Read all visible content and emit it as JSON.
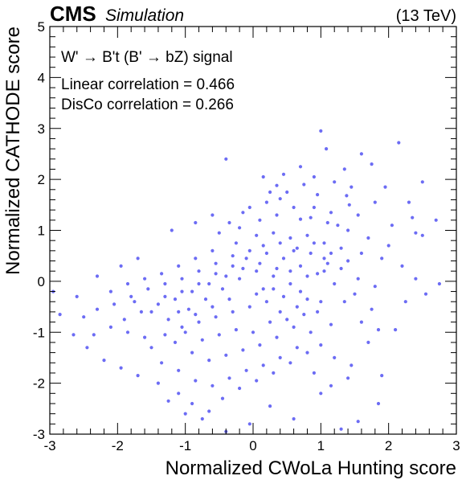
{
  "header": {
    "experiment": "CMS",
    "status": "Simulation",
    "energy": "(13 TeV)"
  },
  "annotations": {
    "process": "W' → B't (B' → bZ) signal",
    "linear_corr": "Linear correlation = 0.466",
    "disco_corr": "DisCo correlation = 0.266"
  },
  "colors": {
    "points": "#3b3bf0",
    "axis": "#000000"
  },
  "chart_data": {
    "type": "scatter",
    "title": "",
    "xlabel": "Normalized CWoLa Hunting score",
    "ylabel": "Normalized CATHODE score",
    "xlim": [
      -3,
      3
    ],
    "ylim": [
      -3,
      5
    ],
    "xticks": [
      -3,
      -2,
      -1,
      0,
      1,
      2,
      3
    ],
    "yticks": [
      -3,
      -2,
      -1,
      0,
      1,
      2,
      3,
      4,
      5
    ],
    "grid": false,
    "legend": "none",
    "points": [
      [
        1.0,
        2.95
      ],
      [
        2.15,
        2.72
      ],
      [
        1.08,
        2.6
      ],
      [
        1.6,
        2.5
      ],
      [
        1.75,
        2.3
      ],
      [
        2.5,
        1.95
      ],
      [
        0.35,
        1.88
      ],
      [
        1.45,
        1.85
      ],
      [
        1.42,
        1.5
      ],
      [
        1.38,
        1.68
      ],
      [
        0.15,
        2.05
      ],
      [
        -0.4,
        2.4
      ],
      [
        2.35,
        1.25
      ],
      [
        2.4,
        0.95
      ],
      [
        2.5,
        0.9
      ],
      [
        2.7,
        1.2
      ],
      [
        2.05,
        1.1
      ],
      [
        1.15,
        1.35
      ],
      [
        1.25,
        1.1
      ],
      [
        0.7,
        1.22
      ],
      [
        0.9,
        1.45
      ],
      [
        0.4,
        1.62
      ],
      [
        -0.6,
        1.3
      ],
      [
        -0.85,
        1.15
      ],
      [
        -1.2,
        1.0
      ],
      [
        -0.5,
        0.95
      ],
      [
        -0.2,
        1.05
      ],
      [
        0.05,
        0.9
      ],
      [
        0.3,
        0.95
      ],
      [
        0.55,
        0.85
      ],
      [
        0.8,
        0.9
      ],
      [
        1.05,
        0.75
      ],
      [
        1.3,
        0.65
      ],
      [
        1.6,
        0.55
      ],
      [
        1.9,
        0.45
      ],
      [
        2.2,
        0.3
      ],
      [
        2.4,
        0.05
      ],
      [
        2.55,
        -0.25
      ],
      [
        2.75,
        -0.05
      ],
      [
        2.25,
        -0.4
      ],
      [
        2.1,
        -0.95
      ],
      [
        1.75,
        -0.55
      ],
      [
        1.5,
        -0.25
      ],
      [
        1.2,
        -0.05
      ],
      [
        0.95,
        0.15
      ],
      [
        0.7,
        0.3
      ],
      [
        0.45,
        0.45
      ],
      [
        0.2,
        0.55
      ],
      [
        -0.05,
        0.6
      ],
      [
        -0.3,
        0.5
      ],
      [
        -0.55,
        0.35
      ],
      [
        -0.8,
        0.2
      ],
      [
        -1.05,
        0.05
      ],
      [
        -1.3,
        -0.05
      ],
      [
        -1.55,
        -0.15
      ],
      [
        -1.8,
        -0.3
      ],
      [
        -2.05,
        -0.45
      ],
      [
        -2.3,
        -0.55
      ],
      [
        -2.5,
        -0.7
      ],
      [
        -2.65,
        -1.05
      ],
      [
        -2.45,
        -1.3
      ],
      [
        -2.2,
        -1.55
      ],
      [
        -1.95,
        -1.7
      ],
      [
        -1.7,
        -1.85
      ],
      [
        -1.4,
        -2.0
      ],
      [
        -1.1,
        -2.2
      ],
      [
        -0.9,
        -2.4
      ],
      [
        -0.65,
        -2.55
      ],
      [
        -0.45,
        -2.3
      ],
      [
        -0.2,
        -2.1
      ],
      [
        0.05,
        -1.95
      ],
      [
        0.3,
        -1.8
      ],
      [
        0.55,
        -1.6
      ],
      [
        0.8,
        -1.4
      ],
      [
        1.0,
        -1.25
      ],
      [
        1.2,
        -1.5
      ],
      [
        1.45,
        -1.65
      ],
      [
        1.7,
        -1.2
      ],
      [
        1.9,
        -1.85
      ],
      [
        1.85,
        -2.4
      ],
      [
        1.55,
        -2.75
      ],
      [
        1.3,
        -2.9
      ],
      [
        1.0,
        -2.2
      ],
      [
        0.6,
        -2.7
      ],
      [
        0.25,
        -2.45
      ],
      [
        -0.05,
        -2.8
      ],
      [
        -0.4,
        -2.95
      ],
      [
        -0.75,
        -2.7
      ],
      [
        -1.0,
        -2.6
      ],
      [
        -1.25,
        -2.35
      ],
      [
        -1.5,
        -1.3
      ],
      [
        -1.3,
        -1.05
      ],
      [
        -1.05,
        -0.9
      ],
      [
        -0.8,
        -0.8
      ],
      [
        -0.55,
        -0.7
      ],
      [
        -0.3,
        -0.6
      ],
      [
        -0.05,
        -0.5
      ],
      [
        0.2,
        -0.4
      ],
      [
        0.45,
        -0.3
      ],
      [
        0.7,
        -0.2
      ],
      [
        0.95,
        -0.6
      ],
      [
        1.15,
        -0.85
      ],
      [
        0.85,
        -1.0
      ],
      [
        0.6,
        -0.9
      ],
      [
        0.35,
        -1.1
      ],
      [
        0.1,
        -1.25
      ],
      [
        -0.15,
        -1.35
      ],
      [
        -0.4,
        -1.45
      ],
      [
        -0.65,
        -1.55
      ],
      [
        -0.9,
        -1.4
      ],
      [
        -1.15,
        -1.2
      ],
      [
        -0.95,
        -0.55
      ],
      [
        -0.7,
        -0.35
      ],
      [
        -0.45,
        -0.15
      ],
      [
        -0.2,
        0.05
      ],
      [
        0.05,
        0.2
      ],
      [
        0.3,
        0.1
      ],
      [
        0.55,
        -0.05
      ],
      [
        0.8,
        -0.35
      ],
      [
        1.05,
        0.45
      ],
      [
        1.3,
        0.25
      ],
      [
        1.55,
        0.05
      ],
      [
        1.8,
        -0.1
      ],
      [
        2.0,
        0.7
      ],
      [
        1.7,
        0.85
      ],
      [
        1.4,
        1.0
      ],
      [
        1.1,
        1.15
      ],
      [
        0.85,
        1.25
      ],
      [
        0.6,
        1.45
      ],
      [
        0.35,
        1.3
      ],
      [
        0.1,
        1.2
      ],
      [
        -0.15,
        1.35
      ],
      [
        -0.35,
        1.15
      ],
      [
        0.5,
        1.75
      ],
      [
        0.75,
        1.9
      ],
      [
        0.95,
        1.7
      ],
      [
        1.2,
        1.95
      ],
      [
        1.35,
        2.2
      ],
      [
        0.2,
        1.55
      ],
      [
        -0.25,
        0.75
      ],
      [
        -0.6,
        0.6
      ],
      [
        -0.85,
        0.45
      ],
      [
        -1.1,
        0.3
      ],
      [
        -1.35,
        0.15
      ],
      [
        -1.6,
        0.05
      ],
      [
        -1.85,
        -0.05
      ],
      [
        -2.1,
        -0.2
      ],
      [
        -1.9,
        -0.75
      ],
      [
        -1.65,
        -0.6
      ],
      [
        -1.4,
        -0.45
      ],
      [
        -1.15,
        -0.35
      ],
      [
        -0.9,
        -0.2
      ],
      [
        -0.65,
        -0.05
      ],
      [
        -0.4,
        0.1
      ],
      [
        -0.15,
        0.25
      ],
      [
        0.1,
        0.35
      ],
      [
        0.35,
        0.25
      ],
      [
        0.6,
        0.6
      ],
      [
        0.85,
        0.55
      ],
      [
        1.1,
        0.35
      ],
      [
        1.35,
        -0.4
      ],
      [
        1.6,
        -0.8
      ],
      [
        1.85,
        -0.95
      ],
      [
        1.4,
        -1.9
      ],
      [
        1.15,
        -2.05
      ],
      [
        0.9,
        -1.8
      ],
      [
        0.65,
        -1.3
      ],
      [
        0.4,
        -1.5
      ],
      [
        0.15,
        -1.65
      ],
      [
        -0.1,
        -1.75
      ],
      [
        -0.35,
        -1.9
      ],
      [
        -0.6,
        -2.05
      ],
      [
        -0.85,
        -1.95
      ],
      [
        -1.1,
        -1.75
      ],
      [
        -1.35,
        -1.6
      ],
      [
        -1.6,
        -1.1
      ],
      [
        -1.85,
        -1.0
      ],
      [
        -2.1,
        -0.9
      ],
      [
        -2.35,
        -1.05
      ],
      [
        -2.6,
        -0.3
      ],
      [
        -2.85,
        -0.65
      ],
      [
        -2.95,
        -0.2
      ],
      [
        -2.3,
        0.1
      ],
      [
        -1.95,
        0.3
      ],
      [
        -1.7,
        0.45
      ],
      [
        -0.05,
        1.45
      ],
      [
        0.25,
        1.75
      ],
      [
        0.45,
        2.1
      ],
      [
        0.7,
        2.25
      ],
      [
        0.9,
        2.05
      ],
      [
        1.55,
        1.3
      ],
      [
        1.8,
        1.55
      ],
      [
        1.95,
        1.85
      ],
      [
        2.3,
        1.55
      ],
      [
        0.15,
        -0.15
      ],
      [
        0.4,
        -0.6
      ],
      [
        0.65,
        -0.5
      ],
      [
        -0.25,
        -0.95
      ],
      [
        -0.5,
        -1.05
      ],
      [
        -0.75,
        -1.15
      ],
      [
        -1.0,
        -1.0
      ],
      [
        -1.25,
        -0.75
      ],
      [
        -1.5,
        -0.6
      ],
      [
        -1.75,
        -0.4
      ],
      [
        0.0,
        -1.0
      ],
      [
        0.25,
        -0.8
      ],
      [
        0.5,
        -0.75
      ],
      [
        0.75,
        -0.65
      ],
      [
        1.0,
        -0.4
      ],
      [
        -0.1,
        0.45
      ],
      [
        0.15,
        0.7
      ],
      [
        0.4,
        0.75
      ],
      [
        0.65,
        0.65
      ],
      [
        0.9,
        0.75
      ],
      [
        1.15,
        0.55
      ],
      [
        1.4,
        0.4
      ],
      [
        -0.3,
        0.3
      ],
      [
        -0.55,
        0.15
      ],
      [
        -0.8,
        -0.05
      ],
      [
        -1.05,
        -0.2
      ],
      [
        -1.3,
        -0.3
      ],
      [
        -0.35,
        -0.35
      ],
      [
        -0.6,
        -0.5
      ],
      [
        -0.85,
        -0.65
      ],
      [
        -1.1,
        -0.6
      ],
      [
        0.05,
        -0.25
      ],
      [
        0.3,
        -0.15
      ],
      [
        0.55,
        0.2
      ],
      [
        0.8,
        0.1
      ],
      [
        1.05,
        0.2
      ]
    ]
  }
}
